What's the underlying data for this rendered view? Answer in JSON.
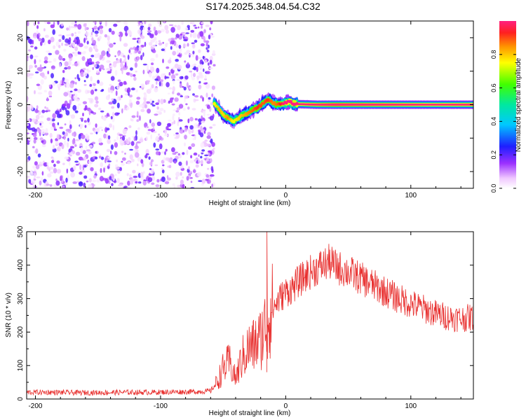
{
  "title": "S174.2025.348.04.54.C32",
  "chart_data": [
    {
      "type": "heatmap",
      "title": "S174.2025.348.04.54.C32",
      "xlabel": "Height of straight line (km)",
      "ylabel": "Frequency (Hz)",
      "xlim": [
        -207,
        150
      ],
      "ylim": [
        -25,
        25
      ],
      "xticks": [
        -200,
        -100,
        0,
        100
      ],
      "yticks": [
        -20,
        -10,
        0,
        10,
        20
      ],
      "colorbar": {
        "label": "Normalized spectral amplitude",
        "range": [
          0,
          1
        ],
        "ticks": [
          "0.0",
          "0.2",
          "0.4",
          "0.6",
          "0.8"
        ],
        "tick_values": [
          0,
          0.2,
          0.4,
          0.6,
          0.8
        ]
      },
      "noise_region_x": [
        -207,
        -57
      ],
      "track": {
        "x": [
          -57,
          -53,
          -50,
          -46,
          -42,
          -38,
          -34,
          -30,
          -26,
          -22,
          -18,
          -14,
          -10,
          -6,
          -2,
          2,
          8,
          15,
          25,
          40,
          60,
          80,
          100,
          120,
          150
        ],
        "frequency": [
          0.5,
          -1.5,
          -3.0,
          -4.0,
          -5.0,
          -4.0,
          -3.0,
          -2.5,
          -1.5,
          -0.8,
          0.5,
          1.5,
          0.5,
          0.0,
          0.3,
          0.8,
          0.2,
          0.1,
          0.0,
          0.0,
          0.0,
          0.0,
          0.0,
          0.0,
          0.0
        ],
        "amplitude": [
          0.35,
          0.45,
          0.4,
          0.5,
          0.35,
          0.4,
          0.45,
          0.5,
          0.55,
          0.6,
          0.55,
          0.6,
          0.5,
          0.55,
          0.7,
          0.8,
          0.75,
          0.85,
          0.9,
          1.0,
          0.95,
          0.9,
          0.85,
          0.8,
          0.85
        ]
      }
    },
    {
      "type": "line",
      "xlabel": "Height of straight line (km)",
      "ylabel": "SNR (10 * v/v)",
      "xlim": [
        -207,
        150
      ],
      "ylim": [
        0,
        500
      ],
      "xticks": [
        -200,
        -100,
        0,
        100
      ],
      "yticks": [
        0,
        100,
        200,
        300,
        400,
        500
      ],
      "color": "#e8302f",
      "series": [
        {
          "name": "SNR",
          "x": [
            -207,
            -190,
            -170,
            -150,
            -130,
            -110,
            -90,
            -70,
            -60,
            -55,
            -50,
            -45,
            -40,
            -35,
            -30,
            -25,
            -20,
            -16,
            -14,
            -10,
            -5,
            0,
            5,
            10,
            20,
            30,
            35,
            40,
            50,
            60,
            70,
            80,
            90,
            100,
            110,
            120,
            130,
            140,
            150
          ],
          "y": [
            20,
            20,
            19,
            19,
            20,
            20,
            21,
            22,
            24,
            50,
            90,
            110,
            60,
            120,
            150,
            160,
            180,
            220,
            250,
            270,
            300,
            320,
            330,
            350,
            380,
            400,
            410,
            395,
            380,
            360,
            340,
            320,
            300,
            285,
            270,
            255,
            245,
            240,
            245
          ]
        }
      ],
      "spike": {
        "x": -15,
        "y": 505
      }
    }
  ]
}
